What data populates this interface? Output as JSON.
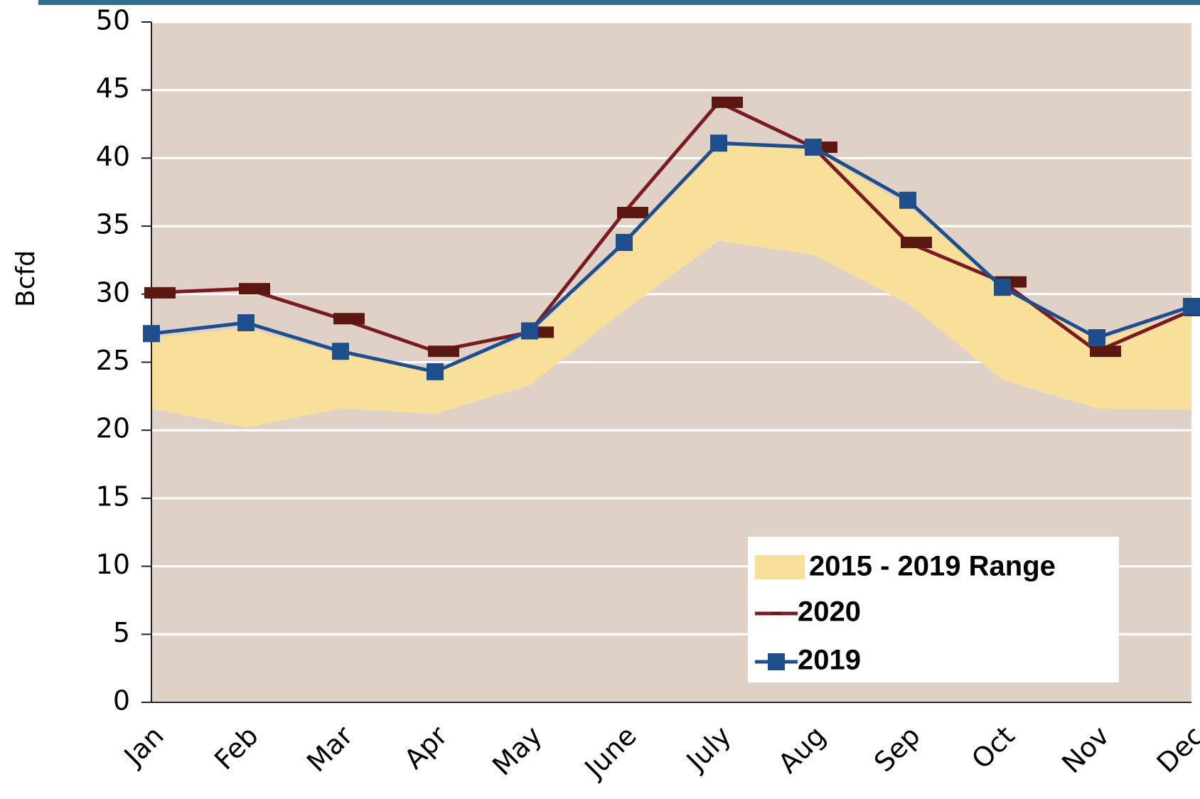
{
  "chart_data": {
    "type": "line",
    "y_label": "Bcfd",
    "categories": [
      "Jan",
      "Feb",
      "Mar",
      "Apr",
      "May",
      "June",
      "July",
      "Aug",
      "Sep",
      "Oct",
      "Nov",
      "Dec"
    ],
    "range": {
      "name": "2015 - 2019 Range",
      "color": "#f8e09b",
      "low": [
        21.6,
        20.2,
        21.6,
        21.2,
        23.3,
        28.8,
        33.9,
        32.9,
        29.3,
        23.7,
        21.6,
        21.5
      ],
      "high": [
        26.8,
        27.5,
        25.6,
        24.2,
        27.0,
        33.5,
        41.0,
        40.6,
        36.5,
        30.5,
        26.6,
        28.7
      ]
    },
    "series": [
      {
        "name": "2020",
        "color": "#7a1a22",
        "marker_color": "#5a1810",
        "marker": "dash",
        "values": [
          30.1,
          30.4,
          28.2,
          25.8,
          27.2,
          36.0,
          44.1,
          40.8,
          33.8,
          30.9,
          25.8,
          28.8
        ]
      },
      {
        "name": "2019",
        "color": "#1f4e8c",
        "marker_color": "#1f4e8c",
        "marker": "square",
        "values": [
          27.1,
          27.9,
          25.8,
          24.3,
          27.3,
          33.8,
          41.1,
          40.8,
          36.9,
          30.5,
          26.8,
          29.1
        ]
      }
    ],
    "ylim": [
      0,
      50
    ],
    "yticks": [
      0,
      5,
      10,
      15,
      20,
      25,
      30,
      35,
      40,
      45,
      50
    ],
    "grid": true,
    "plot_background": "#e0d1c6",
    "legend": "lower-right"
  }
}
